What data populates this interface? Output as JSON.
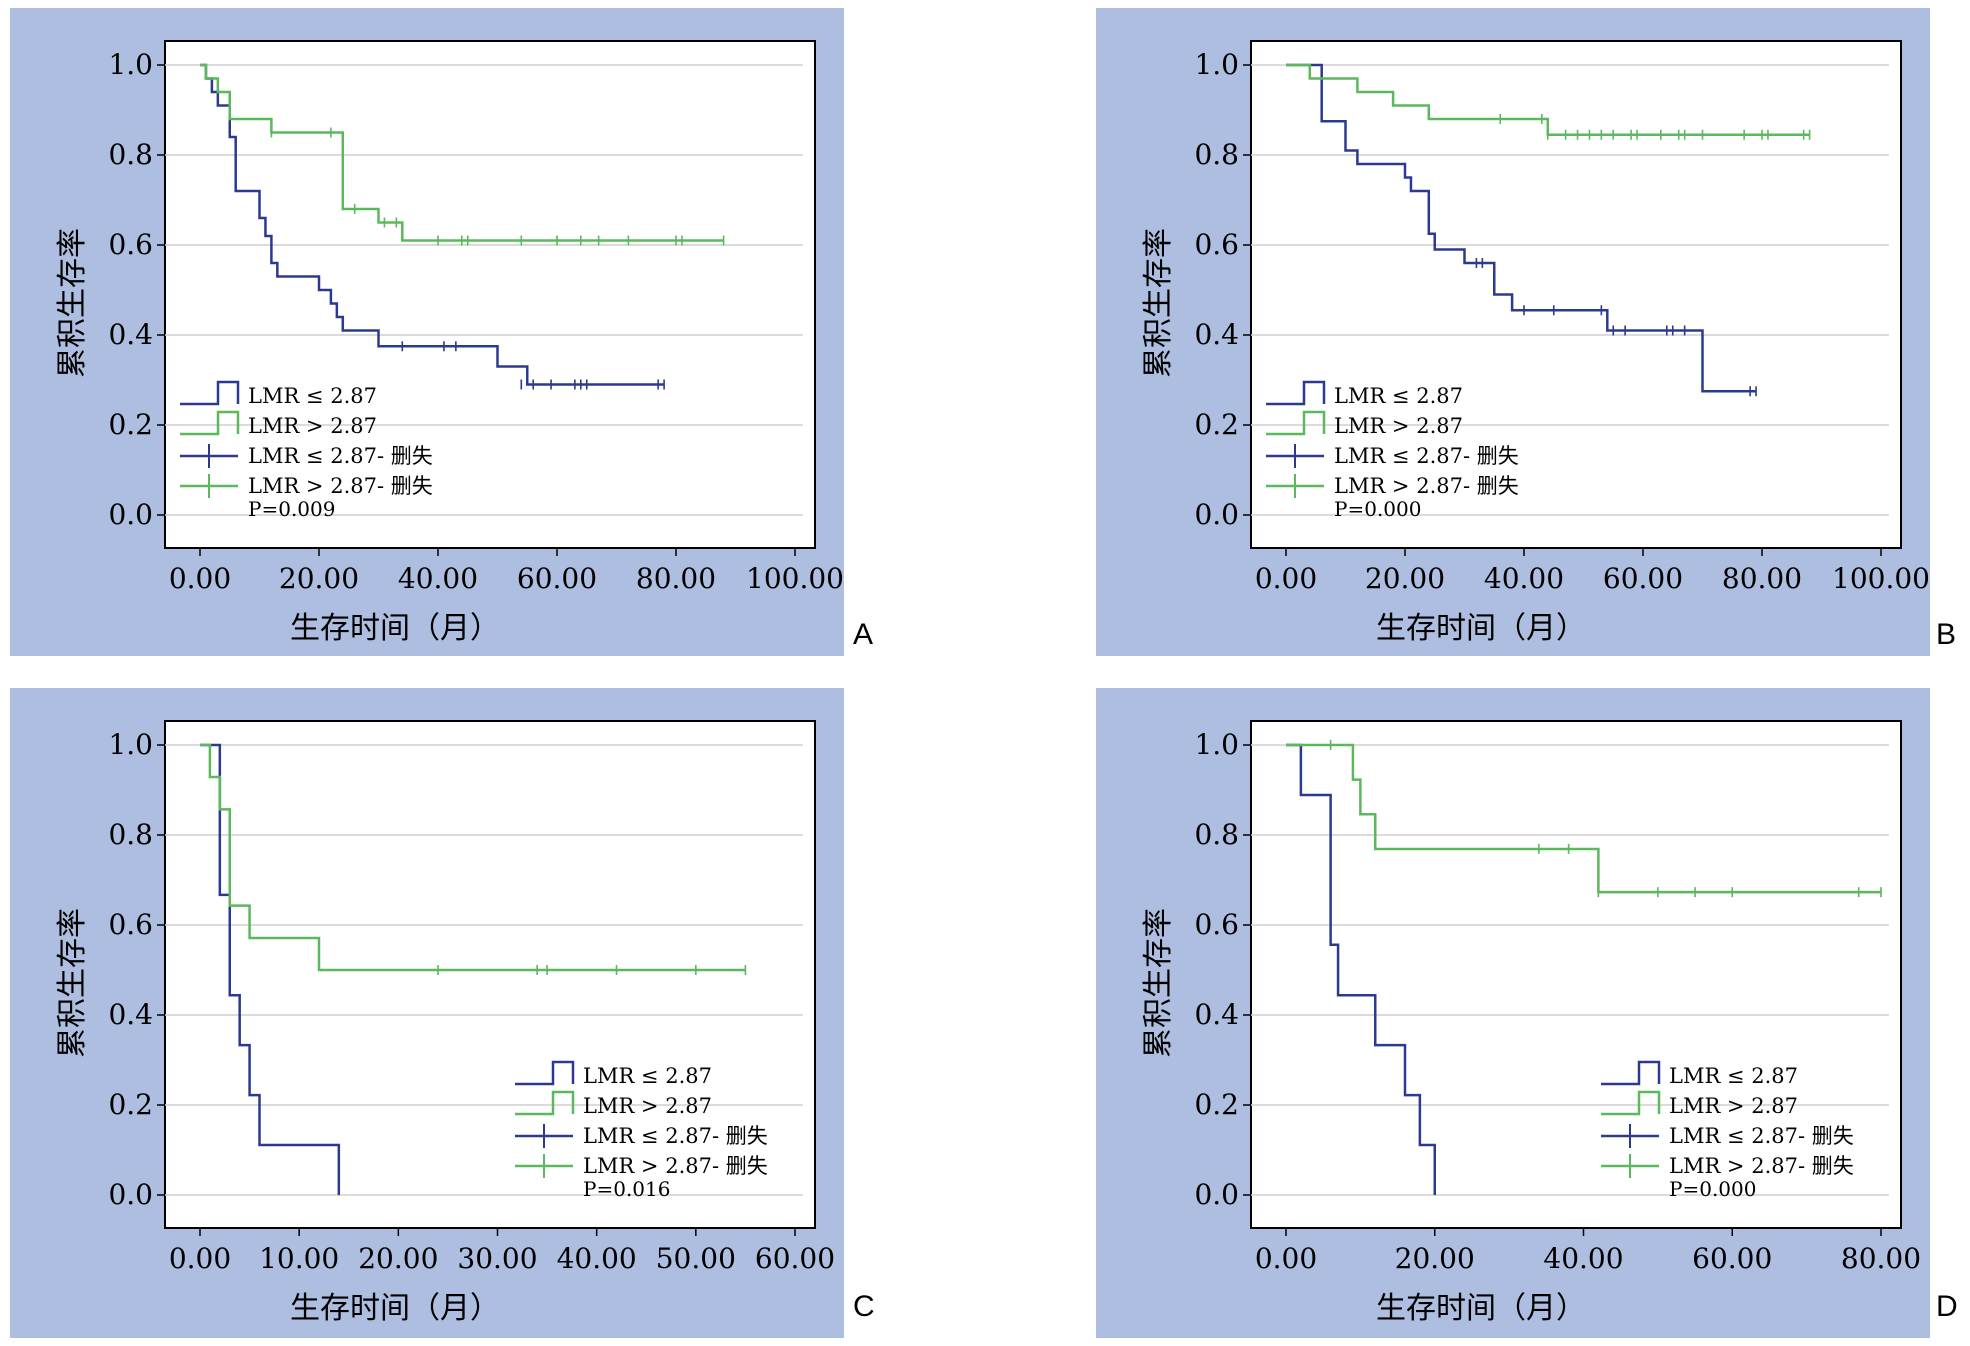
{
  "colors": {
    "background": "#AEBEE0",
    "plot_bg": "#FFFFFF",
    "grid": "#CFCFCF",
    "low": "#2B3990",
    "high": "#5CB85C"
  },
  "chart_data": [
    {
      "panel": "A",
      "type": "line",
      "step": true,
      "xlabel": "生存时间（月）",
      "ylabel": "累积生存率",
      "xlim": [
        0,
        100
      ],
      "ylim": [
        0,
        1
      ],
      "xticks": [
        "0.00",
        "20.00",
        "40.00",
        "60.00",
        "80.00",
        "100.00"
      ],
      "yticks": [
        "0.0",
        "0.2",
        "0.4",
        "0.6",
        "0.8",
        "1.0"
      ],
      "xtick_values": [
        0,
        20,
        40,
        60,
        80,
        100
      ],
      "ytick_values": [
        0,
        0.2,
        0.4,
        0.6,
        0.8,
        1.0
      ],
      "legend": {
        "position": "bottom-left",
        "entries": [
          "LMR ≤ 2.87",
          "LMR > 2.87",
          "LMR ≤ 2.87- 删失",
          "LMR > 2.87- 删失"
        ],
        "pvalue": "P=0.009"
      },
      "series": [
        {
          "name": "LMR ≤ 2.87",
          "color_key": "low",
          "x": [
            0,
            1,
            2,
            3,
            5,
            6,
            10,
            11,
            12,
            13,
            20,
            22,
            23,
            24,
            25,
            30,
            34,
            36,
            40,
            50,
            55,
            78
          ],
          "y": [
            1.0,
            0.97,
            0.94,
            0.91,
            0.84,
            0.72,
            0.66,
            0.62,
            0.56,
            0.53,
            0.5,
            0.47,
            0.44,
            0.41,
            0.41,
            0.375,
            0.375,
            0.375,
            0.375,
            0.33,
            0.29,
            0.29
          ],
          "censored_x": [
            34,
            41,
            43,
            54,
            56,
            59,
            63,
            64,
            65,
            77,
            78
          ],
          "censored_y": [
            0.375,
            0.375,
            0.375,
            0.29,
            0.29,
            0.29,
            0.29,
            0.29,
            0.29,
            0.29,
            0.29
          ]
        },
        {
          "name": "LMR > 2.87",
          "color_key": "high",
          "x": [
            0,
            1,
            3,
            5,
            12,
            24,
            30,
            32,
            34,
            88
          ],
          "y": [
            1.0,
            0.97,
            0.94,
            0.88,
            0.85,
            0.68,
            0.65,
            0.65,
            0.61,
            0.61
          ],
          "censored_x": [
            12,
            22,
            26,
            31,
            33,
            40,
            44,
            45,
            54,
            60,
            64,
            67,
            72,
            80,
            81,
            88
          ],
          "censored_y": [
            0.85,
            0.85,
            0.68,
            0.65,
            0.65,
            0.61,
            0.61,
            0.61,
            0.61,
            0.61,
            0.61,
            0.61,
            0.61,
            0.61,
            0.61,
            0.61
          ]
        }
      ]
    },
    {
      "panel": "B",
      "type": "line",
      "step": true,
      "xlabel": "生存时间（月）",
      "ylabel": "累积生存率",
      "xlim": [
        0,
        100
      ],
      "ylim": [
        0,
        1
      ],
      "xticks": [
        "0.00",
        "20.00",
        "40.00",
        "60.00",
        "80.00",
        "100.00"
      ],
      "yticks": [
        "0.0",
        "0.2",
        "0.4",
        "0.6",
        "0.8",
        "1.0"
      ],
      "xtick_values": [
        0,
        20,
        40,
        60,
        80,
        100
      ],
      "ytick_values": [
        0,
        0.2,
        0.4,
        0.6,
        0.8,
        1.0
      ],
      "legend": {
        "position": "bottom-left",
        "entries": [
          "LMR ≤ 2.87",
          "LMR > 2.87",
          "LMR ≤ 2.87- 删失",
          "LMR > 2.87- 删失"
        ],
        "pvalue": "P=0.000"
      },
      "series": [
        {
          "name": "LMR ≤ 2.87",
          "color_key": "low",
          "x": [
            0,
            6,
            10,
            12,
            20,
            21,
            22,
            24,
            25,
            30,
            34,
            35,
            38,
            54,
            70,
            79
          ],
          "y": [
            1.0,
            0.875,
            0.81,
            0.78,
            0.75,
            0.72,
            0.72,
            0.625,
            0.59,
            0.56,
            0.56,
            0.49,
            0.455,
            0.41,
            0.275,
            0.275
          ],
          "censored_x": [
            32,
            33,
            40,
            45,
            53,
            55,
            57,
            64,
            65,
            67,
            78,
            79
          ],
          "censored_y": [
            0.56,
            0.56,
            0.455,
            0.455,
            0.455,
            0.41,
            0.41,
            0.41,
            0.41,
            0.41,
            0.275,
            0.275
          ]
        },
        {
          "name": "LMR > 2.87",
          "color_key": "high",
          "x": [
            0,
            4,
            12,
            18,
            24,
            44,
            88
          ],
          "y": [
            1.0,
            0.97,
            0.94,
            0.91,
            0.88,
            0.845,
            0.845
          ],
          "censored_x": [
            36,
            43,
            44,
            47,
            49,
            51,
            53,
            55,
            58,
            59,
            63,
            66,
            67,
            70,
            77,
            80,
            81,
            87,
            88
          ],
          "censored_y": [
            0.88,
            0.88,
            0.845,
            0.845,
            0.845,
            0.845,
            0.845,
            0.845,
            0.845,
            0.845,
            0.845,
            0.845,
            0.845,
            0.845,
            0.845,
            0.845,
            0.845,
            0.845,
            0.845
          ]
        }
      ]
    },
    {
      "panel": "C",
      "type": "line",
      "step": true,
      "xlabel": "生存时间（月）",
      "ylabel": "累积生存率",
      "xlim": [
        0,
        60
      ],
      "ylim": [
        0,
        1
      ],
      "xticks": [
        "0.00",
        "10.00",
        "20.00",
        "30.00",
        "40.00",
        "50.00",
        "60.00"
      ],
      "yticks": [
        "0.0",
        "0.2",
        "0.4",
        "0.6",
        "0.8",
        "1.0"
      ],
      "xtick_values": [
        0,
        10,
        20,
        30,
        40,
        50,
        60
      ],
      "ytick_values": [
        0,
        0.2,
        0.4,
        0.6,
        0.8,
        1.0
      ],
      "legend": {
        "position": "bottom-right",
        "entries": [
          "LMR ≤ 2.87",
          "LMR > 2.87",
          "LMR ≤ 2.87- 删失",
          "LMR > 2.87- 删失"
        ],
        "pvalue": "P=0.016"
      },
      "series": [
        {
          "name": "LMR ≤ 2.87",
          "color_key": "low",
          "x": [
            0,
            2,
            3,
            4,
            5,
            6,
            14,
            14
          ],
          "y": [
            1.0,
            0.667,
            0.444,
            0.333,
            0.222,
            0.111,
            0.111,
            0.0
          ],
          "censored_x": [],
          "censored_y": []
        },
        {
          "name": "LMR > 2.87",
          "color_key": "high",
          "x": [
            0,
            1,
            2,
            3,
            5,
            12,
            55
          ],
          "y": [
            1.0,
            0.929,
            0.857,
            0.643,
            0.571,
            0.5,
            0.5
          ],
          "censored_x": [
            24,
            34,
            35,
            42,
            50,
            55
          ],
          "censored_y": [
            0.5,
            0.5,
            0.5,
            0.5,
            0.5,
            0.5
          ]
        }
      ]
    },
    {
      "panel": "D",
      "type": "line",
      "step": true,
      "xlabel": "生存时间（月）",
      "ylabel": "累积生存率",
      "xlim": [
        0,
        80
      ],
      "ylim": [
        0,
        1
      ],
      "xticks": [
        "0.00",
        "20.00",
        "40.00",
        "60.00",
        "80.00"
      ],
      "yticks": [
        "0.0",
        "0.2",
        "0.4",
        "0.6",
        "0.8",
        "1.0"
      ],
      "xtick_values": [
        0,
        20,
        40,
        60,
        80
      ],
      "ytick_values": [
        0,
        0.2,
        0.4,
        0.6,
        0.8,
        1.0
      ],
      "legend": {
        "position": "bottom-right",
        "entries": [
          "LMR ≤ 2.87",
          "LMR > 2.87",
          "LMR ≤ 2.87- 删失",
          "LMR > 2.87- 删失"
        ],
        "pvalue": "P=0.000"
      },
      "series": [
        {
          "name": "LMR ≤ 2.87",
          "color_key": "low",
          "x": [
            0,
            2,
            6,
            7,
            12,
            16,
            18,
            20,
            20
          ],
          "y": [
            1.0,
            0.889,
            0.556,
            0.444,
            0.333,
            0.222,
            0.111,
            0.111,
            0.0
          ],
          "censored_x": [],
          "censored_y": []
        },
        {
          "name": "LMR > 2.87",
          "color_key": "high",
          "x": [
            0,
            9,
            10,
            12,
            42,
            80
          ],
          "y": [
            1.0,
            0.923,
            0.846,
            0.769,
            0.673,
            0.673
          ],
          "censored_x": [
            6,
            34,
            38,
            42,
            50,
            55,
            60,
            77,
            80
          ],
          "censored_y": [
            1.0,
            0.769,
            0.769,
            0.673,
            0.673,
            0.673,
            0.673,
            0.673,
            0.673
          ]
        }
      ]
    }
  ]
}
